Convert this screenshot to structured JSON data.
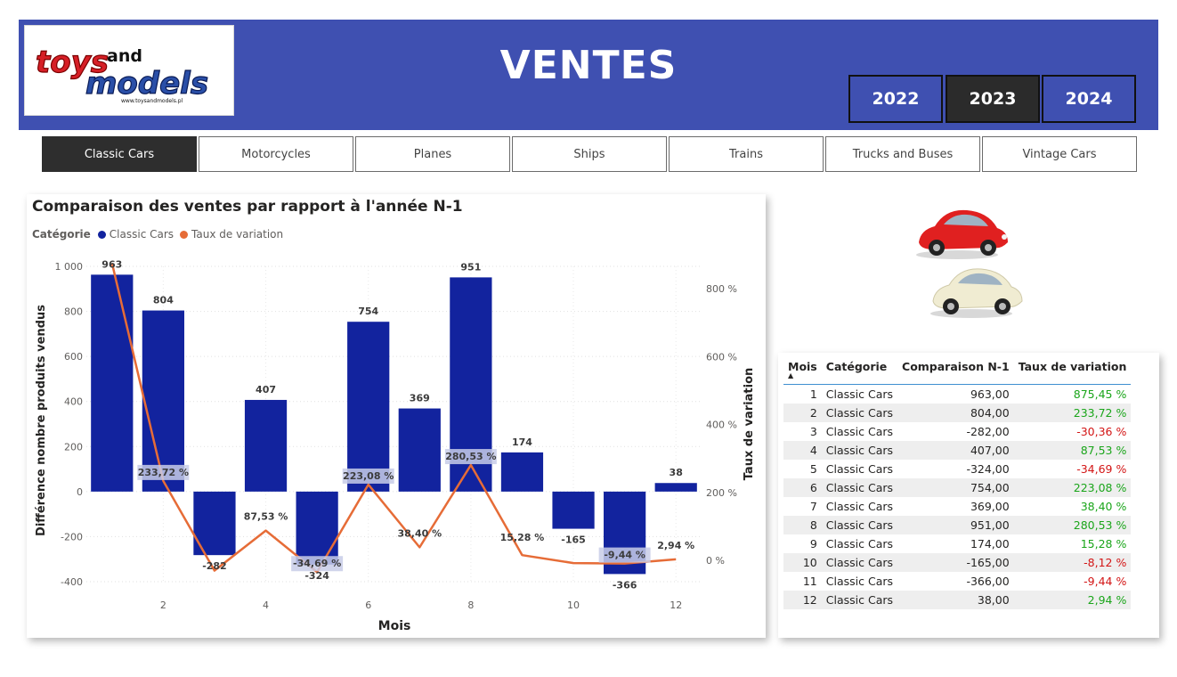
{
  "header": {
    "title": "VENTES",
    "logo": {
      "word1": "toys",
      "word2": "and",
      "word3": "models",
      "url": "www.toysandmodels.pl"
    },
    "years": [
      {
        "label": "2022",
        "active": false
      },
      {
        "label": "2023",
        "active": true
      },
      {
        "label": "2024",
        "active": false
      }
    ],
    "colors": {
      "banner": "#3F50B1",
      "active": "#2b2b2b"
    }
  },
  "categories": [
    {
      "label": "Classic Cars",
      "active": true
    },
    {
      "label": "Motorcycles",
      "active": false
    },
    {
      "label": "Planes",
      "active": false
    },
    {
      "label": "Ships",
      "active": false
    },
    {
      "label": "Trains",
      "active": false
    },
    {
      "label": "Trucks and Buses",
      "active": false
    },
    {
      "label": "Vintage Cars",
      "active": false
    }
  ],
  "chart": {
    "title": "Comparaison des ventes par rapport à l'année N-1",
    "legend_title": "Catégorie",
    "legend": [
      {
        "name": "Classic Cars",
        "color": "#12239E"
      },
      {
        "name": "Taux de variation",
        "color": "#E66C37"
      }
    ]
  },
  "chart_data": {
    "type": "bar",
    "title": "Comparaison des ventes par rapport à l'année N-1",
    "xlabel": "Mois",
    "ylabel": "Différence nombre produits vendus",
    "y2label": "Taux de variation",
    "x": [
      1,
      2,
      3,
      4,
      5,
      6,
      7,
      8,
      9,
      10,
      11,
      12
    ],
    "x_ticks": [
      "2",
      "4",
      "6",
      "8",
      "10",
      "12"
    ],
    "ylim": [
      -400,
      1000
    ],
    "y_ticks": [
      "-400",
      "-200",
      "0",
      "200",
      "400",
      "600",
      "800",
      "1 000"
    ],
    "y2lim": [
      0,
      800
    ],
    "y2_ticks": [
      "0 %",
      "200 %",
      "400 %",
      "600 %",
      "800 %"
    ],
    "series": [
      {
        "name": "Classic Cars",
        "type": "bar",
        "color": "#12239E",
        "values": [
          963,
          804,
          -282,
          407,
          -324,
          754,
          369,
          951,
          174,
          -165,
          -366,
          38
        ],
        "labels": [
          "963",
          "804",
          "-282",
          "407",
          "-324",
          "754",
          "369",
          "951",
          "174",
          "-165",
          "-366",
          "38"
        ]
      },
      {
        "name": "Taux de variation",
        "type": "line",
        "color": "#E66C37",
        "values": [
          875.45,
          233.72,
          -30.36,
          87.53,
          -34.69,
          223.08,
          38.4,
          280.53,
          15.28,
          -8.12,
          -9.44,
          2.94
        ],
        "labels": [
          "",
          "233,72 %",
          "",
          "87,53 %",
          "-34,69 %",
          "223,08 %",
          "38,40 %",
          "280,53 %",
          "15,28 %",
          "",
          "-9,44 %",
          "2,94 %"
        ]
      }
    ],
    "grid": true,
    "legend_position": "top-left"
  },
  "table": {
    "columns": [
      "Mois",
      "Catégorie",
      "Comparaison N-1",
      "Taux de variation"
    ],
    "rows": [
      [
        "1",
        "Classic Cars",
        "963,00",
        "875,45 %"
      ],
      [
        "2",
        "Classic Cars",
        "804,00",
        "233,72 %"
      ],
      [
        "3",
        "Classic Cars",
        "-282,00",
        "-30,36 %"
      ],
      [
        "4",
        "Classic Cars",
        "407,00",
        "87,53 %"
      ],
      [
        "5",
        "Classic Cars",
        "-324,00",
        "-34,69 %"
      ],
      [
        "6",
        "Classic Cars",
        "754,00",
        "223,08 %"
      ],
      [
        "7",
        "Classic Cars",
        "369,00",
        "38,40 %"
      ],
      [
        "8",
        "Classic Cars",
        "951,00",
        "280,53 %"
      ],
      [
        "9",
        "Classic Cars",
        "174,00",
        "15,28 %"
      ],
      [
        "10",
        "Classic Cars",
        "-165,00",
        "-8,12 %"
      ],
      [
        "11",
        "Classic Cars",
        "-366,00",
        "-9,44 %"
      ],
      [
        "12",
        "Classic Cars",
        "38,00",
        "2,94 %"
      ]
    ],
    "colors": {
      "positive": "#1aa51a",
      "negative": "#d31515",
      "header_border": "#3F8FD0"
    }
  },
  "images": {
    "cars": "car-icon"
  }
}
